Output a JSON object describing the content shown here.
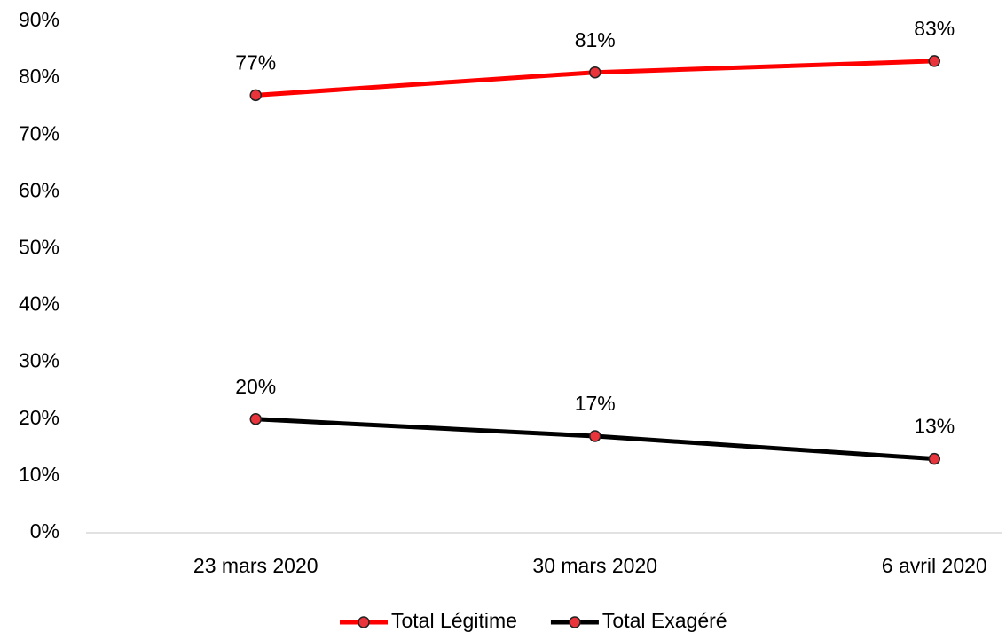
{
  "chart_data": {
    "type": "line",
    "categories": [
      "23 mars 2020",
      "30 mars 2020",
      "6 avril 2020"
    ],
    "series": [
      {
        "name": "Total Légitime",
        "color": "#ff0000",
        "values": [
          77,
          81,
          83
        ],
        "value_labels": [
          "77%",
          "81%",
          "83%"
        ]
      },
      {
        "name": "Total Exagéré",
        "color": "#000000",
        "values": [
          20,
          17,
          13
        ],
        "value_labels": [
          "20%",
          "17%",
          "13%"
        ]
      }
    ],
    "marker_color": "#e8343a",
    "ylim": [
      0,
      90
    ],
    "yticks": [
      {
        "value": 0,
        "label": "0%"
      },
      {
        "value": 10,
        "label": "10%"
      },
      {
        "value": 20,
        "label": "20%"
      },
      {
        "value": 30,
        "label": "30%"
      },
      {
        "value": 40,
        "label": "40%"
      },
      {
        "value": 50,
        "label": "50%"
      },
      {
        "value": 60,
        "label": "60%"
      },
      {
        "value": 70,
        "label": "70%"
      },
      {
        "value": 80,
        "label": "80%"
      },
      {
        "value": 90,
        "label": "90%"
      }
    ],
    "grid": false,
    "legend": "bottom"
  }
}
